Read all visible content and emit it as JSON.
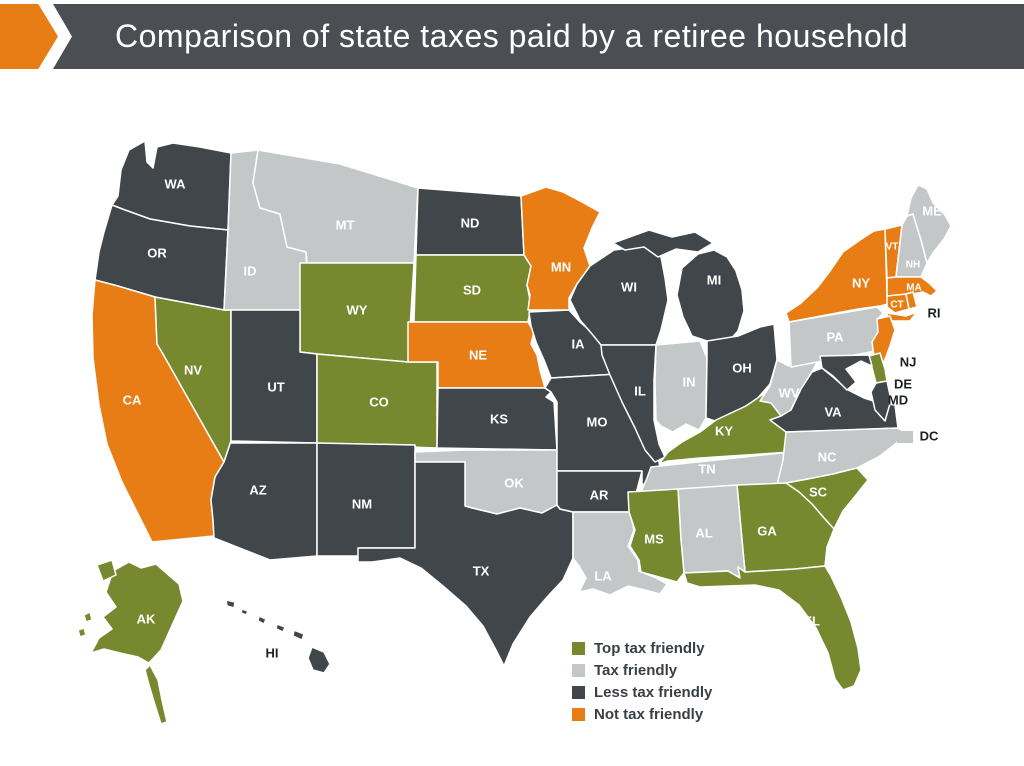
{
  "header": {
    "title": "Comparison of state taxes paid by a retiree household"
  },
  "colors": {
    "top": "#78882E",
    "friendly": "#C4C7C8",
    "less": "#41464B",
    "not": "#E87D16",
    "banner": "#4B4F54",
    "accent": "#E87D16",
    "legend_text": "#3A3F44",
    "outside_label": "#1D2125"
  },
  "legend": {
    "items": [
      {
        "label": "Top tax friendly",
        "category": "top"
      },
      {
        "label": "Tax friendly",
        "category": "friendly"
      },
      {
        "label": "Less tax friendly",
        "category": "less"
      },
      {
        "label": "Not tax friendly",
        "category": "not"
      }
    ]
  },
  "states": [
    {
      "id": "WA",
      "label": "WA",
      "category": "less"
    },
    {
      "id": "OR",
      "label": "OR",
      "category": "less"
    },
    {
      "id": "CA",
      "label": "CA",
      "category": "not"
    },
    {
      "id": "NV",
      "label": "NV",
      "category": "top"
    },
    {
      "id": "ID",
      "label": "ID",
      "category": "friendly"
    },
    {
      "id": "MT",
      "label": "MT",
      "category": "friendly"
    },
    {
      "id": "WY",
      "label": "WY",
      "category": "top"
    },
    {
      "id": "UT",
      "label": "UT",
      "category": "less"
    },
    {
      "id": "CO",
      "label": "CO",
      "category": "top"
    },
    {
      "id": "AZ",
      "label": "AZ",
      "category": "less"
    },
    {
      "id": "NM",
      "label": "NM",
      "category": "less"
    },
    {
      "id": "ND",
      "label": "ND",
      "category": "less"
    },
    {
      "id": "SD",
      "label": "SD",
      "category": "top"
    },
    {
      "id": "NE",
      "label": "NE",
      "category": "not"
    },
    {
      "id": "KS",
      "label": "KS",
      "category": "less"
    },
    {
      "id": "OK",
      "label": "OK",
      "category": "friendly"
    },
    {
      "id": "TX",
      "label": "TX",
      "category": "less"
    },
    {
      "id": "MN",
      "label": "MN",
      "category": "not"
    },
    {
      "id": "IA",
      "label": "IA",
      "category": "less"
    },
    {
      "id": "MO",
      "label": "MO",
      "category": "less"
    },
    {
      "id": "AR",
      "label": "AR",
      "category": "less"
    },
    {
      "id": "LA",
      "label": "LA",
      "category": "friendly"
    },
    {
      "id": "WI",
      "label": "WI",
      "category": "less"
    },
    {
      "id": "IL",
      "label": "IL",
      "category": "less"
    },
    {
      "id": "IN",
      "label": "IN",
      "category": "friendly"
    },
    {
      "id": "MI",
      "label": "MI",
      "category": "less"
    },
    {
      "id": "OH",
      "label": "OH",
      "category": "less"
    },
    {
      "id": "KY",
      "label": "KY",
      "category": "top"
    },
    {
      "id": "TN",
      "label": "TN",
      "category": "friendly"
    },
    {
      "id": "WV",
      "label": "WV",
      "category": "friendly"
    },
    {
      "id": "VA",
      "label": "VA",
      "category": "less"
    },
    {
      "id": "NC",
      "label": "NC",
      "category": "friendly"
    },
    {
      "id": "SC",
      "label": "SC",
      "category": "top"
    },
    {
      "id": "GA",
      "label": "GA",
      "category": "top"
    },
    {
      "id": "AL",
      "label": "AL",
      "category": "friendly"
    },
    {
      "id": "MS",
      "label": "MS",
      "category": "top"
    },
    {
      "id": "FL",
      "label": "FL",
      "category": "top"
    },
    {
      "id": "PA",
      "label": "PA",
      "category": "friendly"
    },
    {
      "id": "NY",
      "label": "NY",
      "category": "not"
    },
    {
      "id": "NJ",
      "label": "NJ",
      "category": "not"
    },
    {
      "id": "VT",
      "label": "VT",
      "category": "not"
    },
    {
      "id": "NH",
      "label": "NH",
      "category": "friendly"
    },
    {
      "id": "ME",
      "label": "ME",
      "category": "friendly"
    },
    {
      "id": "MA",
      "label": "MA",
      "category": "not"
    },
    {
      "id": "CT",
      "label": "CT",
      "category": "not"
    },
    {
      "id": "RI",
      "label": "RI",
      "category": "not"
    },
    {
      "id": "DE",
      "label": "DE",
      "category": "top"
    },
    {
      "id": "MD",
      "label": "MD",
      "category": "less"
    },
    {
      "id": "DC",
      "label": "DC",
      "category": "friendly"
    },
    {
      "id": "AK",
      "label": "AK",
      "category": "top"
    },
    {
      "id": "HI",
      "label": "HI",
      "category": "less"
    }
  ]
}
